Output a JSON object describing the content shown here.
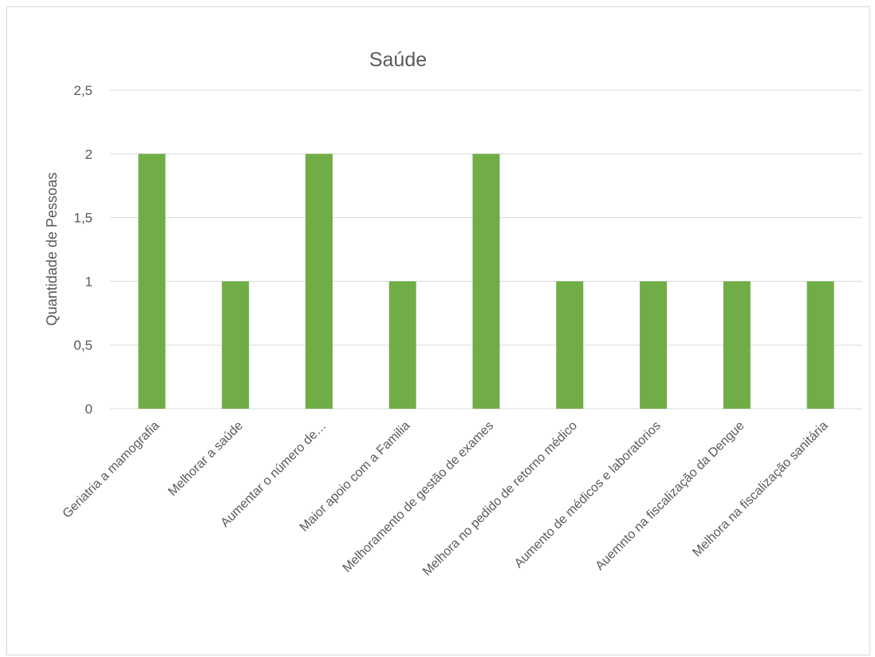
{
  "chart_data": {
    "type": "bar",
    "title": "Saúde",
    "ylabel": "Quantidade de Pessoas",
    "xlabel": "",
    "ylim": [
      0,
      2.5
    ],
    "yticks": [
      "0",
      "0,5",
      "1",
      "1,5",
      "2",
      "2,5"
    ],
    "categories": [
      "Geriatria a mamografia",
      "Melhorar a saúde",
      "Aumentar o número de…",
      "Maior apoio com a Familia",
      "Melhoramento de gestão de exames",
      "Melhora no pedido de retorno médico",
      "Aumento de médicos e laboratorios",
      "Auemnto na fiscalização da Dengue",
      "Melhora na fiscalização sanitária"
    ],
    "values": [
      2,
      1,
      2,
      1,
      2,
      1,
      1,
      1,
      1
    ],
    "bar_color": "#70ad47",
    "gridline_color": "#d9d9d9",
    "grid": true,
    "legend": "none"
  }
}
